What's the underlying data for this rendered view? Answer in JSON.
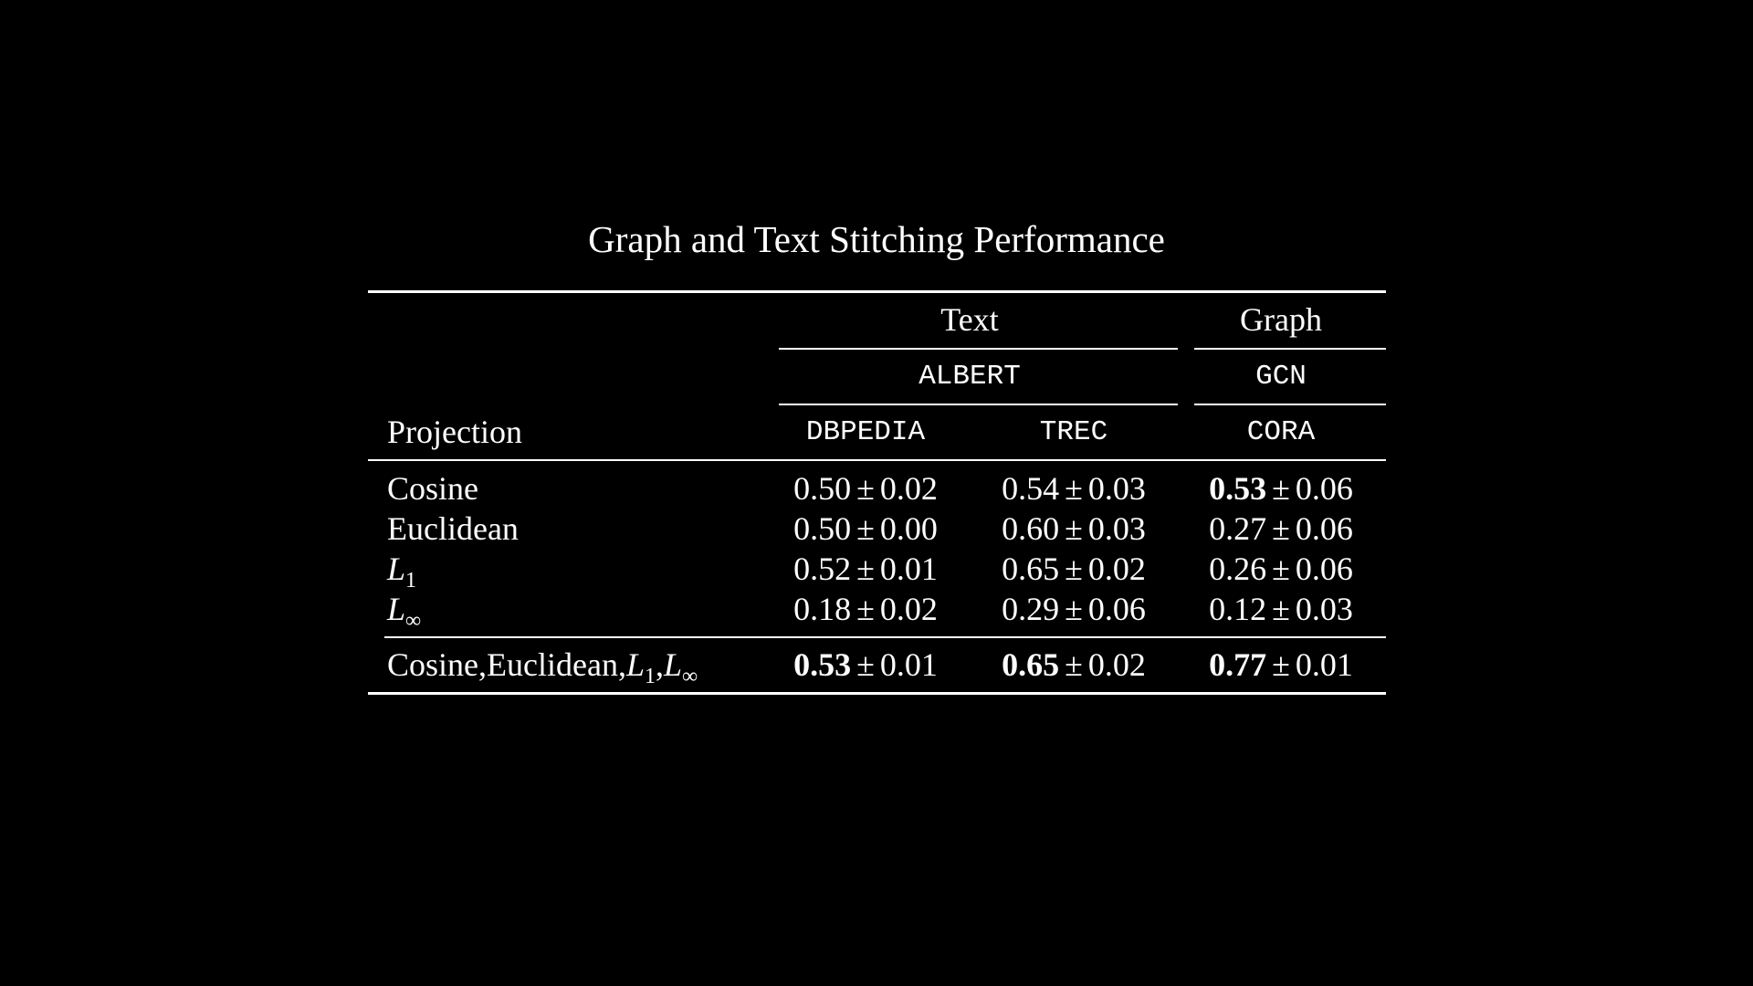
{
  "title": "Graph and Text Stitching Performance",
  "header": {
    "group_text": "Text",
    "group_graph": "Graph",
    "model_text": "ALBERT",
    "model_graph": "GCN",
    "projection_label": "Projection",
    "datasets": [
      "DBPEDIA",
      "TREC",
      "CORA"
    ]
  },
  "symbols": {
    "plus_minus": "±",
    "L": "L",
    "sub_1": "1",
    "sub_inf": "∞",
    "comma": ","
  },
  "rows": [
    {
      "label": "Cosine",
      "cells": [
        {
          "mean": "0.50",
          "std": "0.02",
          "bold": false
        },
        {
          "mean": "0.54",
          "std": "0.03",
          "bold": false
        },
        {
          "mean": "0.53",
          "std": "0.06",
          "bold": true
        }
      ]
    },
    {
      "label": "Euclidean",
      "cells": [
        {
          "mean": "0.50",
          "std": "0.00",
          "bold": false
        },
        {
          "mean": "0.60",
          "std": "0.03",
          "bold": false
        },
        {
          "mean": "0.27",
          "std": "0.06",
          "bold": false
        }
      ]
    },
    {
      "label": "L_1",
      "cells": [
        {
          "mean": "0.52",
          "std": "0.01",
          "bold": false
        },
        {
          "mean": "0.65",
          "std": "0.02",
          "bold": false
        },
        {
          "mean": "0.26",
          "std": "0.06",
          "bold": false
        }
      ]
    },
    {
      "label": "L_inf",
      "cells": [
        {
          "mean": "0.18",
          "std": "0.02",
          "bold": false
        },
        {
          "mean": "0.29",
          "std": "0.06",
          "bold": false
        },
        {
          "mean": "0.12",
          "std": "0.03",
          "bold": false
        }
      ]
    }
  ],
  "combined_row": {
    "label_parts": [
      "Cosine",
      "Euclidean"
    ],
    "cells": [
      {
        "mean": "0.53",
        "std": "0.01",
        "bold": true
      },
      {
        "mean": "0.65",
        "std": "0.02",
        "bold": true
      },
      {
        "mean": "0.77",
        "std": "0.01",
        "bold": true
      }
    ]
  }
}
